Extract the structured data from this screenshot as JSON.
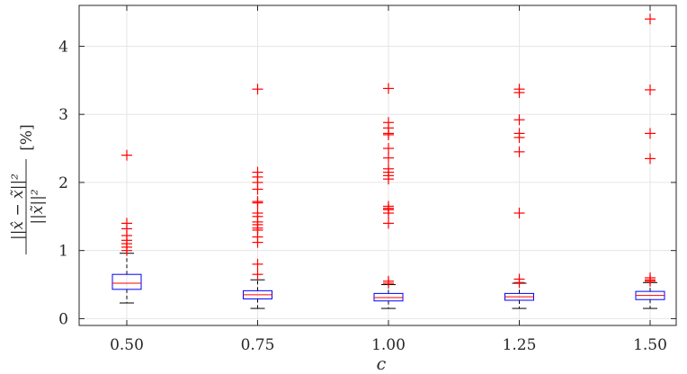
{
  "chart_data": {
    "type": "box",
    "xlabel": "c",
    "ylabel": "||x̂ − x̃||² / ||x̃||² [%]",
    "ylabel_parts": {
      "numerator": "||x̂ − x̃||²",
      "denominator": "||x̃||²",
      "unit": "[%]"
    },
    "categories": [
      "0.50",
      "0.75",
      "1.00",
      "1.25",
      "1.50"
    ],
    "ylim": [
      -0.1,
      4.6
    ],
    "yticks": [
      "0",
      "1",
      "2",
      "3",
      "4"
    ],
    "grid": true,
    "colors": {
      "box": "#0000ff",
      "median": "#ff0000",
      "outlier": "#ff0000",
      "whisker": "#000000"
    },
    "boxes": [
      {
        "category": "0.50",
        "whisker_low": 0.23,
        "q1": 0.43,
        "median": 0.52,
        "q3": 0.65,
        "whisker_high": 0.96,
        "outliers": [
          2.4,
          1.4,
          1.32,
          1.22,
          1.15,
          1.1,
          1.05,
          1.0
        ]
      },
      {
        "category": "0.75",
        "whisker_low": 0.15,
        "q1": 0.29,
        "median": 0.35,
        "q3": 0.41,
        "whisker_high": 0.57,
        "outliers": [
          3.37,
          2.15,
          2.08,
          2.0,
          1.9,
          1.72,
          1.7,
          1.55,
          1.5,
          1.42,
          1.38,
          1.33,
          1.3,
          1.2,
          1.12,
          0.8,
          0.65
        ]
      },
      {
        "category": "1.00",
        "whisker_low": 0.15,
        "q1": 0.26,
        "median": 0.31,
        "q3": 0.37,
        "whisker_high": 0.5,
        "outliers": [
          3.38,
          2.88,
          2.8,
          2.72,
          2.7,
          2.5,
          2.36,
          2.2,
          2.15,
          2.1,
          2.05,
          1.65,
          1.62,
          1.6,
          1.55,
          1.4,
          0.55,
          0.52
        ]
      },
      {
        "category": "1.25",
        "whisker_low": 0.15,
        "q1": 0.27,
        "median": 0.32,
        "q3": 0.37,
        "whisker_high": 0.52,
        "outliers": [
          3.37,
          3.32,
          2.92,
          2.72,
          2.66,
          2.45,
          1.55,
          0.58,
          0.53
        ]
      },
      {
        "category": "1.50",
        "whisker_low": 0.15,
        "q1": 0.28,
        "median": 0.34,
        "q3": 0.4,
        "whisker_high": 0.53,
        "outliers": [
          4.4,
          3.36,
          2.72,
          2.35,
          0.6,
          0.57,
          0.55
        ]
      }
    ]
  }
}
